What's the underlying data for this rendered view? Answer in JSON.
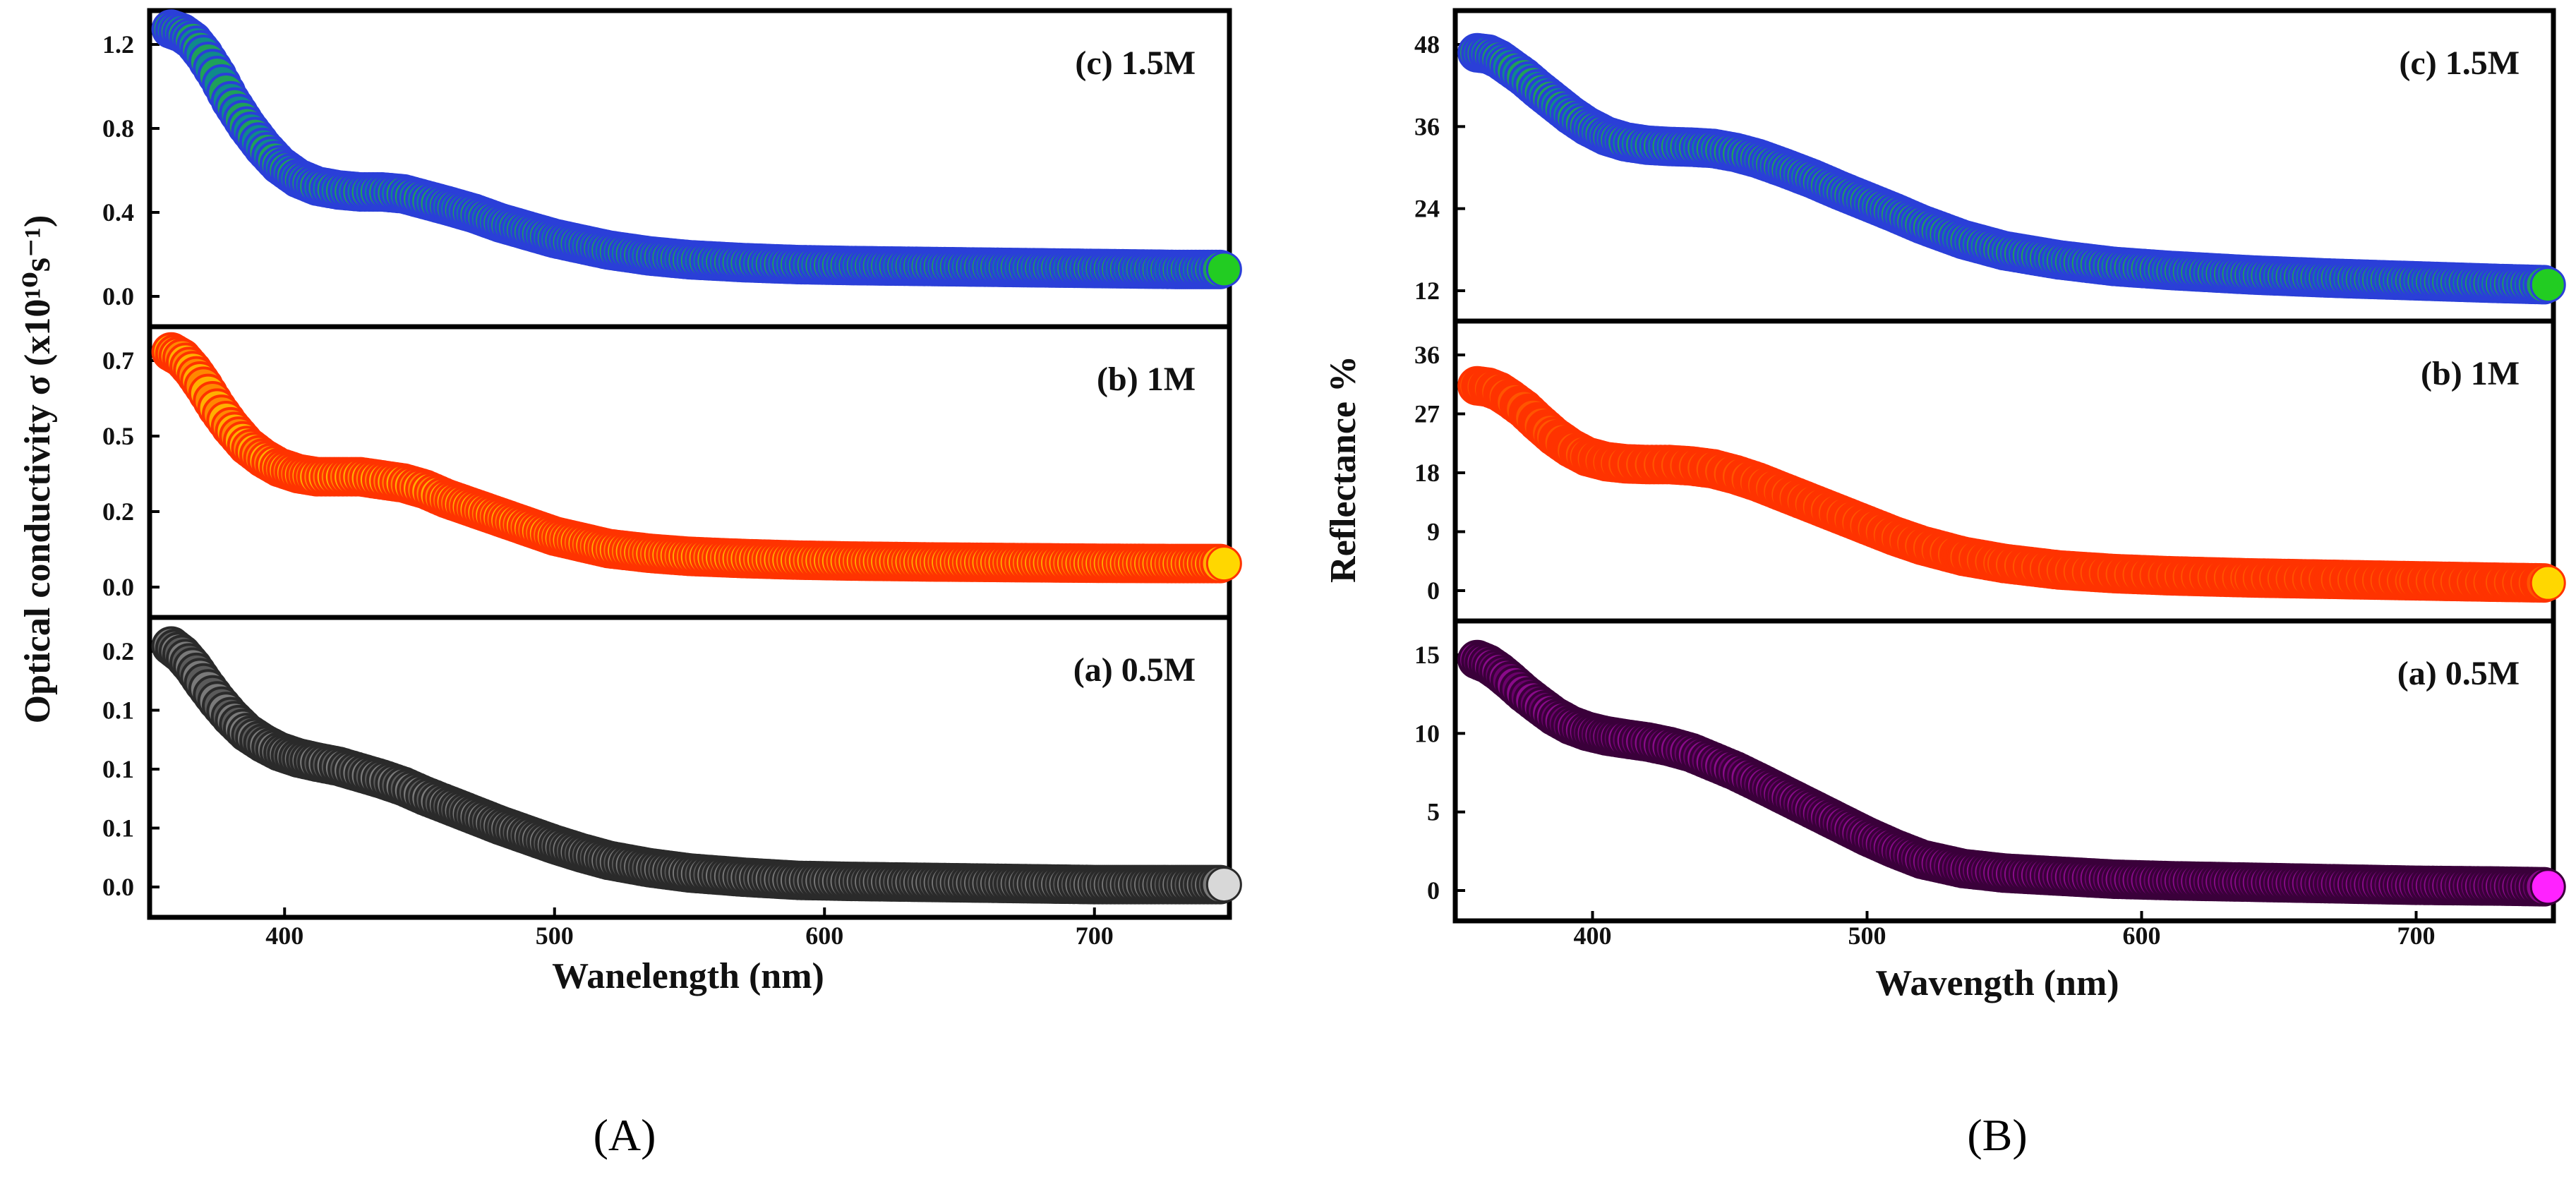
{
  "figure_labels": {
    "a": "(A)",
    "b": "(B)"
  },
  "chart_data": [
    {
      "id": "A",
      "type": "scatter",
      "ylabel": "Optical conductivity σ (x10¹⁰s⁻¹)",
      "xlabel": "Wanelength (nm)",
      "xlim": [
        350,
        750
      ],
      "xticks": [
        400,
        500,
        600,
        700
      ],
      "x": [
        358,
        362,
        366,
        370,
        375,
        380,
        386,
        392,
        398,
        405,
        412,
        420,
        428,
        436,
        444,
        452,
        460,
        470,
        480,
        490,
        500,
        510,
        520,
        535,
        550,
        570,
        590,
        610,
        640,
        670,
        700,
        730,
        748
      ],
      "panels": [
        {
          "label": "(c) 1.5M",
          "yticks": [
            "0.0",
            "0.4",
            "0.8",
            "1.2"
          ],
          "ylim": [
            -0.15,
            1.35
          ],
          "edge_color": "#2a3fd8",
          "fill_colors": [
            "#1ea05a",
            "#0f8a8a"
          ],
          "end_color": "#22cc22",
          "y": [
            1.32,
            1.3,
            1.26,
            1.19,
            1.08,
            0.95,
            0.82,
            0.71,
            0.62,
            0.55,
            0.51,
            0.49,
            0.48,
            0.48,
            0.47,
            0.44,
            0.41,
            0.37,
            0.32,
            0.28,
            0.24,
            0.21,
            0.18,
            0.15,
            0.13,
            0.115,
            0.105,
            0.1,
            0.095,
            0.09,
            0.085,
            0.08,
            0.08
          ]
        },
        {
          "label": "(b) 1M",
          "yticks": [
            "0.0",
            "0.2",
            "0.5",
            "0.7"
          ],
          "ylim": [
            -0.1,
            0.75
          ],
          "edge_color": "#ff3300",
          "fill_colors": [
            "#ffb000",
            "#ff8800"
          ],
          "end_color": "#ffd700",
          "y": [
            0.71,
            0.69,
            0.65,
            0.6,
            0.53,
            0.47,
            0.41,
            0.37,
            0.34,
            0.32,
            0.31,
            0.31,
            0.31,
            0.3,
            0.29,
            0.27,
            0.24,
            0.21,
            0.18,
            0.15,
            0.12,
            0.1,
            0.08,
            0.065,
            0.055,
            0.048,
            0.043,
            0.04,
            0.037,
            0.035,
            0.033,
            0.032,
            0.032
          ]
        },
        {
          "label": "(a) 0.5M",
          "yticks": [
            "0.0",
            "0.1",
            "0.1",
            "0.1",
            "0.2"
          ],
          "ylim": [
            -0.015,
            0.245
          ],
          "edge_color": "#2a2a2a",
          "fill_colors": [
            "#7a7a7a",
            "#5a5a5a"
          ],
          "end_color": "#d8d8d8",
          "y": [
            0.23,
            0.222,
            0.21,
            0.195,
            0.178,
            0.163,
            0.148,
            0.138,
            0.13,
            0.124,
            0.12,
            0.116,
            0.11,
            0.104,
            0.097,
            0.088,
            0.08,
            0.07,
            0.06,
            0.051,
            0.042,
            0.034,
            0.027,
            0.02,
            0.015,
            0.011,
            0.008,
            0.007,
            0.006,
            0.005,
            0.004,
            0.004,
            0.004
          ]
        }
      ]
    },
    {
      "id": "B",
      "type": "scatter",
      "ylabel": "Reflectance %",
      "xlabel": "Wavength (nm)",
      "xlim": [
        350,
        750
      ],
      "xticks": [
        400,
        500,
        600,
        700
      ],
      "x": [
        358,
        362,
        366,
        370,
        375,
        380,
        386,
        392,
        398,
        405,
        412,
        420,
        428,
        436,
        444,
        452,
        460,
        470,
        480,
        490,
        500,
        510,
        520,
        535,
        550,
        570,
        590,
        610,
        640,
        670,
        700,
        730,
        748
      ],
      "panels": [
        {
          "label": "(c) 1.5M",
          "yticks": [
            "12",
            "24",
            "36",
            "48"
          ],
          "ylim": [
            5,
            48.5
          ],
          "edge_color": "#2a3fd8",
          "fill_colors": [
            "#1ea05a",
            "#0f8a8a"
          ],
          "end_color": "#22cc22",
          "y": [
            44,
            43.8,
            43,
            41.8,
            40.3,
            38.5,
            36.5,
            34.5,
            32.8,
            31.3,
            30.4,
            29.9,
            29.7,
            29.6,
            29.4,
            28.8,
            27.9,
            26.4,
            24.8,
            23,
            21.3,
            19.6,
            17.8,
            15.5,
            13.8,
            12.4,
            11.4,
            10.8,
            10.1,
            9.6,
            9.2,
            8.8,
            8.6
          ]
        },
        {
          "label": "(b) 1M",
          "yticks": [
            "0",
            "9",
            "18",
            "27",
            "36"
          ],
          "ylim": [
            0,
            38
          ],
          "edge_color": "#ff3300",
          "fill_colors": [
            "#ff5500",
            "#ff3300"
          ],
          "end_color": "#ffd700",
          "y": [
            30.8,
            30.6,
            30,
            29,
            27.6,
            25.8,
            23.8,
            22.2,
            21,
            20.3,
            20,
            19.9,
            19.9,
            19.7,
            19.3,
            18.5,
            17.5,
            16,
            14.5,
            13,
            11.5,
            10,
            8.7,
            7.2,
            6.2,
            5.3,
            4.8,
            4.5,
            4.2,
            4,
            3.8,
            3.6,
            3.5
          ]
        },
        {
          "label": "(a) 0.5M",
          "yticks": [
            "0",
            "5",
            "10",
            "15"
          ],
          "ylim": [
            -0.5,
            17.5
          ],
          "edge_color": "#3a003a",
          "fill_colors": [
            "#8a0a8a",
            "#6a006a"
          ],
          "end_color": "#ff22ff",
          "y": [
            15.8,
            15.5,
            15,
            14.4,
            13.6,
            12.9,
            12.1,
            11.5,
            11.1,
            10.8,
            10.6,
            10.4,
            10.1,
            9.7,
            9.1,
            8.5,
            7.8,
            6.9,
            6,
            5.1,
            4.2,
            3.4,
            2.7,
            2.1,
            1.8,
            1.6,
            1.4,
            1.3,
            1.2,
            1.1,
            1,
            0.95,
            0.9
          ]
        }
      ]
    }
  ]
}
